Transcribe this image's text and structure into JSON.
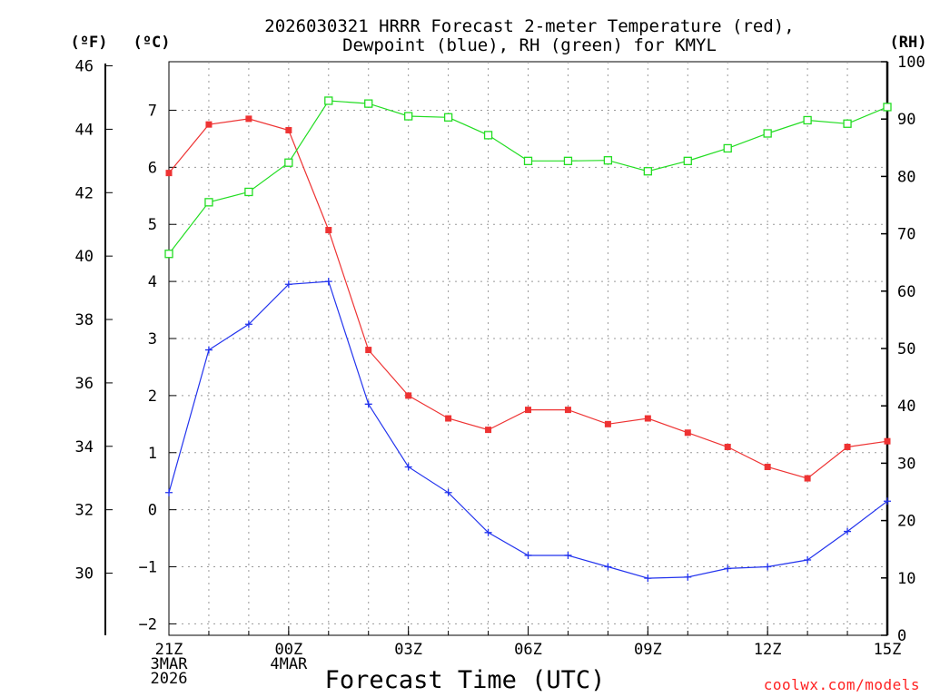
{
  "chart_data": {
    "type": "line",
    "title_line1": "2026030321 HRRR Forecast 2-meter Temperature (red),",
    "title_line2": "Dewpoint (blue), RH (green) for KMYL",
    "xlabel": "Forecast Time (UTC)",
    "credit": "coolwx.com/models",
    "units": {
      "f": "(ºF)",
      "c": "(ºC)",
      "rh": "(RH)"
    },
    "x_hours": [
      0,
      1,
      2,
      3,
      4,
      5,
      6,
      7,
      8,
      9,
      10,
      11,
      12,
      13,
      14,
      15,
      16,
      17,
      18
    ],
    "x_ticks": [
      {
        "hour": 0,
        "lines": [
          "21Z",
          "3MAR",
          "2026"
        ]
      },
      {
        "hour": 3,
        "lines": [
          "00Z",
          "4MAR"
        ]
      },
      {
        "hour": 6,
        "lines": [
          "03Z"
        ]
      },
      {
        "hour": 9,
        "lines": [
          "06Z"
        ]
      },
      {
        "hour": 12,
        "lines": [
          "09Z"
        ]
      },
      {
        "hour": 15,
        "lines": [
          "12Z"
        ]
      },
      {
        "hour": 18,
        "lines": [
          "15Z"
        ]
      }
    ],
    "celsius_axis": {
      "min": -2.2,
      "max": 7.85,
      "ticks": [
        -2,
        -1,
        0,
        1,
        2,
        3,
        4,
        5,
        6,
        7
      ]
    },
    "fahrenheit_ticks": [
      30,
      32,
      34,
      36,
      38,
      40,
      42,
      44,
      46
    ],
    "rh_axis": {
      "min": 0,
      "max": 100,
      "ticks": [
        0,
        10,
        20,
        30,
        40,
        50,
        60,
        70,
        80,
        90,
        100
      ]
    },
    "series": [
      {
        "name": "Temperature",
        "units": "C",
        "color": "#ee3333",
        "marker": "filled-square",
        "values": [
          5.9,
          6.75,
          6.85,
          6.65,
          4.9,
          2.8,
          2.0,
          1.6,
          1.4,
          1.75,
          1.75,
          1.5,
          1.6,
          1.35,
          1.1,
          0.75,
          0.55,
          1.1,
          1.2
        ]
      },
      {
        "name": "Dewpoint",
        "units": "C",
        "color": "#2233ee",
        "marker": "plus",
        "values": [
          0.3,
          2.8,
          3.25,
          3.95,
          4.0,
          1.85,
          0.75,
          0.3,
          -0.4,
          -0.8,
          -0.8,
          -1.0,
          -1.2,
          -1.18,
          -1.03,
          -1.0,
          -0.88,
          -0.38,
          0.15
        ]
      },
      {
        "name": "RH",
        "units": "%",
        "color": "#22dd22",
        "marker": "open-square",
        "values": [
          66.5,
          75.5,
          77.3,
          82.4,
          93.2,
          92.7,
          90.5,
          90.3,
          87.2,
          82.7,
          82.7,
          82.8,
          80.9,
          82.7,
          84.9,
          87.5,
          89.8,
          89.2,
          92.1
        ]
      }
    ]
  }
}
